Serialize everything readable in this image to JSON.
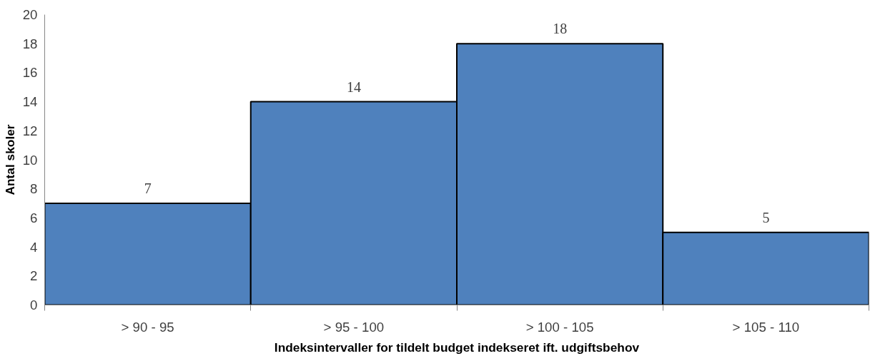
{
  "chart_data": {
    "type": "bar",
    "xlabel": "Indeksintervaller for tildelt budget indekseret ift. udgiftsbehov",
    "ylabel": "Antal skoler",
    "categories": [
      "> 90 - 95",
      "> 95 - 100",
      "> 100 - 105",
      "> 105 - 110"
    ],
    "values": [
      7,
      14,
      18,
      5
    ],
    "color": "#4f81bd",
    "ylim": [
      0,
      20
    ],
    "yticks": [
      0,
      2,
      4,
      6,
      8,
      10,
      12,
      14,
      16,
      18,
      20
    ],
    "grid": false,
    "data_labels": true
  }
}
